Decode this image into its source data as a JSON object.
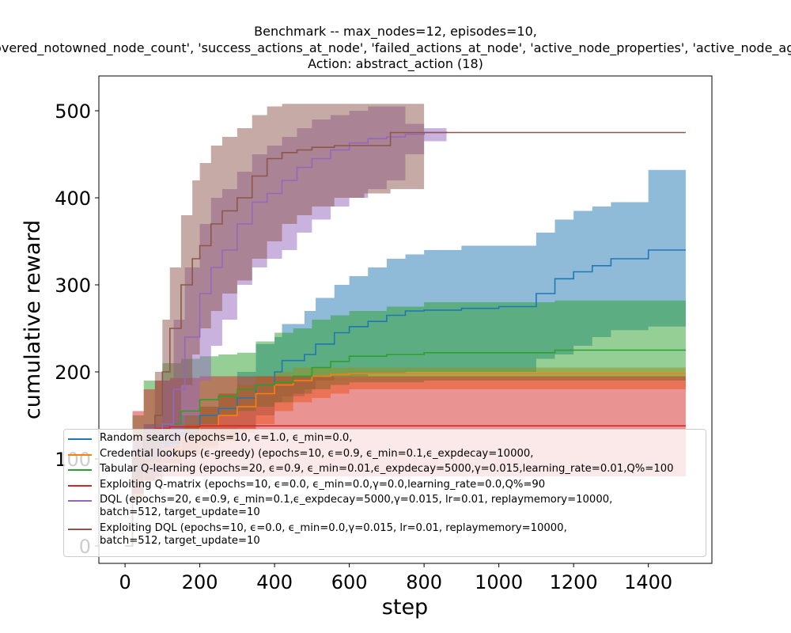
{
  "title": {
    "line1": "Benchmark -- max_nodes=12, episodes=10,",
    "line2": "'discovered_notowned_node_count', 'success_actions_at_node', 'failed_actions_at_node', 'active_node_properties', 'active_node_age', ...",
    "line3": "Action: abstract_action (18)"
  },
  "chart_data": {
    "type": "line",
    "xlabel": "step",
    "ylabel": "cumulative reward",
    "xlim": [
      -70,
      1570
    ],
    "ylim": [
      -20,
      540
    ],
    "xticks": [
      0,
      200,
      400,
      600,
      800,
      1000,
      1200,
      1400
    ],
    "yticks": [
      0,
      100,
      200,
      300,
      400,
      500
    ],
    "grid": false,
    "legend_position": "lower-left",
    "series": [
      {
        "name": "Random search (epochs=10, ϵ=1.0, ϵ_min=0.0,",
        "color": "#1f77b4",
        "x": [
          0,
          20,
          50,
          100,
          150,
          200,
          250,
          300,
          350,
          400,
          420,
          480,
          510,
          560,
          600,
          650,
          700,
          750,
          800,
          900,
          1000,
          1100,
          1150,
          1200,
          1250,
          1300,
          1400,
          1500
        ],
        "y": [
          0,
          75,
          95,
          118,
          130,
          150,
          158,
          170,
          185,
          200,
          213,
          220,
          232,
          245,
          252,
          258,
          265,
          270,
          271,
          273,
          275,
          290,
          307,
          315,
          322,
          330,
          340,
          340
        ],
        "lower": [
          0,
          55,
          75,
          95,
          105,
          115,
          125,
          135,
          150,
          165,
          172,
          180,
          190,
          195,
          195,
          198,
          198,
          200,
          200,
          200,
          200,
          215,
          220,
          230,
          240,
          248,
          252,
          252
        ],
        "upper": [
          0,
          100,
          120,
          140,
          150,
          160,
          175,
          200,
          232,
          240,
          255,
          270,
          285,
          300,
          310,
          320,
          330,
          335,
          340,
          345,
          345,
          360,
          375,
          385,
          390,
          395,
          432,
          432
        ]
      },
      {
        "name": "Credential lookups (ϵ-greedy) (epochs=10, ϵ=0.9, ϵ_min=0.1,ϵ_expdecay=10000,",
        "color": "#ff7f0e",
        "x": [
          0,
          20,
          50,
          100,
          150,
          200,
          250,
          300,
          350,
          400,
          450,
          500,
          550,
          600,
          700,
          800,
          1000,
          1500
        ],
        "y": [
          0,
          75,
          95,
          112,
          125,
          138,
          150,
          160,
          175,
          185,
          190,
          195,
          197,
          198,
          198,
          198,
          198,
          198
        ],
        "lower": [
          0,
          55,
          75,
          95,
          105,
          112,
          120,
          130,
          140,
          155,
          165,
          170,
          175,
          180,
          180,
          180,
          180,
          180
        ],
        "upper": [
          0,
          90,
          110,
          130,
          140,
          160,
          175,
          185,
          195,
          200,
          205,
          205,
          205,
          205,
          205,
          205,
          205,
          205
        ]
      },
      {
        "name": "Tabular Q-learning (epochs=20, ϵ=0.9, ϵ_min=0.01,ϵ_expdecay=5000,γ=0.015,learning_rate=0.01,Q%=100",
        "color": "#2ca02c",
        "x": [
          0,
          20,
          50,
          100,
          150,
          200,
          250,
          300,
          350,
          400,
          450,
          500,
          550,
          600,
          700,
          800,
          1000,
          1100,
          1150,
          1300,
          1500
        ],
        "y": [
          0,
          90,
          120,
          140,
          155,
          168,
          172,
          180,
          185,
          188,
          195,
          205,
          212,
          218,
          220,
          222,
          222,
          222,
          225,
          225,
          225
        ],
        "lower": [
          0,
          70,
          95,
          118,
          130,
          140,
          150,
          155,
          160,
          165,
          175,
          180,
          185,
          188,
          188,
          190,
          190,
          190,
          190,
          190,
          190
        ],
        "upper": [
          0,
          150,
          190,
          210,
          215,
          218,
          220,
          222,
          235,
          245,
          250,
          260,
          265,
          270,
          275,
          280,
          280,
          280,
          282,
          282,
          282
        ]
      },
      {
        "name": "Exploiting Q-matrix (epochs=10, ϵ=0.0, ϵ_min=0.0,γ=0.0,learning_rate=0.0,Q%=90",
        "color": "#d62728",
        "x": [
          0,
          20,
          50,
          80,
          120,
          200,
          300,
          400,
          500,
          800,
          1100,
          1500
        ],
        "y": [
          0,
          100,
          125,
          135,
          137,
          138,
          138,
          138,
          138,
          138,
          138,
          138
        ],
        "lower": [
          0,
          60,
          75,
          80,
          80,
          80,
          80,
          80,
          80,
          80,
          80,
          80
        ],
        "upper": [
          0,
          155,
          180,
          190,
          193,
          195,
          195,
          195,
          195,
          195,
          195,
          195
        ]
      },
      {
        "name": "DQL (epochs=20, ϵ=0.9, ϵ_min=0.1,ϵ_expdecay=5000,γ=0.015, lr=0.01, replaymemory=10000,\nbatch=512, target_update=10",
        "color": "#9467bd",
        "x": [
          0,
          20,
          50,
          100,
          130,
          160,
          200,
          230,
          260,
          300,
          340,
          380,
          420,
          460,
          500,
          550,
          600,
          650,
          700,
          750,
          800,
          860
        ],
        "y": [
          0,
          90,
          110,
          140,
          180,
          240,
          290,
          320,
          340,
          370,
          395,
          405,
          420,
          435,
          445,
          455,
          463,
          468,
          470,
          473,
          475,
          476
        ],
        "lower": [
          0,
          65,
          80,
          100,
          120,
          150,
          190,
          230,
          260,
          300,
          320,
          330,
          340,
          360,
          375,
          390,
          400,
          410,
          420,
          450,
          465,
          470
        ],
        "upper": [
          0,
          120,
          140,
          190,
          260,
          320,
          370,
          400,
          410,
          430,
          450,
          460,
          470,
          480,
          490,
          495,
          500,
          505,
          505,
          485,
          480,
          478
        ]
      },
      {
        "name": "Exploiting DQL (epochs=10, ϵ=0.0, ϵ_min=0.0,γ=0.015, lr=0.01, replaymemory=10000,\nbatch=512, target_update=10",
        "color": "#8c564b",
        "x": [
          0,
          20,
          50,
          80,
          100,
          120,
          150,
          180,
          200,
          230,
          260,
          300,
          340,
          380,
          420,
          460,
          500,
          560,
          640,
          710,
          800,
          1000,
          1500
        ],
        "y": [
          0,
          85,
          110,
          150,
          200,
          250,
          300,
          330,
          345,
          370,
          385,
          400,
          425,
          445,
          452,
          455,
          458,
          460,
          460,
          475,
          475,
          475,
          475
        ],
        "lower": [
          0,
          60,
          75,
          90,
          110,
          140,
          185,
          220,
          250,
          270,
          290,
          305,
          330,
          350,
          370,
          380,
          390,
          400,
          405,
          410,
          475,
          475,
          475
        ],
        "upper": [
          0,
          110,
          140,
          200,
          260,
          320,
          380,
          420,
          440,
          460,
          470,
          480,
          495,
          505,
          508,
          508,
          508,
          508,
          508,
          508,
          475,
          475,
          475
        ]
      }
    ]
  }
}
